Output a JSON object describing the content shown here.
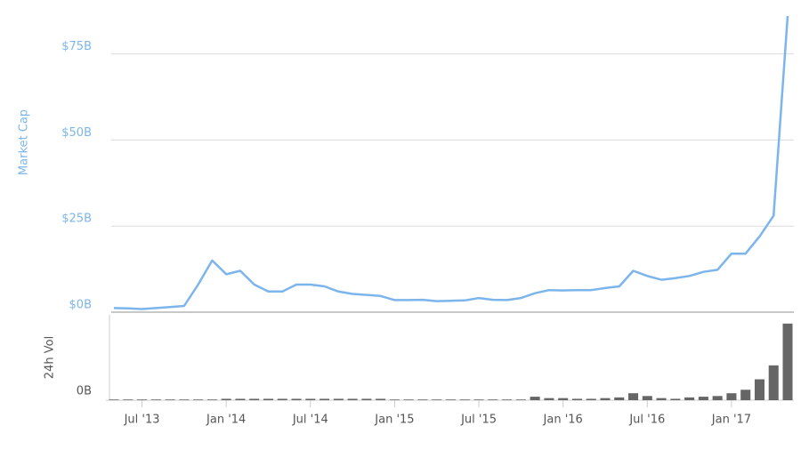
{
  "chart_data": [
    {
      "type": "line",
      "ylabel": "Market Cap",
      "x": [
        "2013-05",
        "2013-06",
        "2013-07",
        "2013-08",
        "2013-09",
        "2013-10",
        "2013-11",
        "2013-12",
        "2014-01",
        "2014-02",
        "2014-03",
        "2014-04",
        "2014-05",
        "2014-06",
        "2014-07",
        "2014-08",
        "2014-09",
        "2014-10",
        "2014-11",
        "2014-12",
        "2015-01",
        "2015-02",
        "2015-03",
        "2015-04",
        "2015-05",
        "2015-06",
        "2015-07",
        "2015-08",
        "2015-09",
        "2015-10",
        "2015-11",
        "2015-12",
        "2016-01",
        "2016-02",
        "2016-03",
        "2016-04",
        "2016-05",
        "2016-06",
        "2016-07",
        "2016-08",
        "2016-09",
        "2016-10",
        "2016-11",
        "2016-12",
        "2017-01",
        "2017-02",
        "2017-03",
        "2017-04",
        "2017-05"
      ],
      "series": [
        {
          "name": "Market Cap",
          "color": "#7cb5ec",
          "values": [
            1.2,
            1.1,
            0.9,
            1.2,
            1.5,
            1.8,
            8,
            15,
            11,
            12,
            8,
            6,
            6,
            8,
            8,
            7.5,
            6,
            5.3,
            5,
            4.7,
            3.5,
            3.5,
            3.6,
            3.2,
            3.3,
            3.4,
            4.1,
            3.6,
            3.5,
            4.1,
            5.5,
            6.4,
            6.3,
            6.4,
            6.4,
            7,
            7.5,
            12,
            10.5,
            9.4,
            9.9,
            10.5,
            11.7,
            12.3,
            17,
            17,
            22,
            28,
            86
          ]
        }
      ],
      "ylim": [
        0,
        86
      ],
      "yticks": [
        {
          "value": 0,
          "label": "$0B"
        },
        {
          "value": 25,
          "label": "$25B"
        },
        {
          "value": 50,
          "label": "$50B"
        },
        {
          "value": 75,
          "label": "$75B"
        }
      ],
      "xticks": [
        {
          "value": "2013-07",
          "label": "Jul '13"
        },
        {
          "value": "2014-01",
          "label": "Jan '14"
        },
        {
          "value": "2014-07",
          "label": "Jul '14"
        },
        {
          "value": "2015-01",
          "label": "Jan '15"
        },
        {
          "value": "2015-07",
          "label": "Jul '15"
        },
        {
          "value": "2016-01",
          "label": "Jan '16"
        },
        {
          "value": "2016-07",
          "label": "Jul '16"
        },
        {
          "value": "2017-01",
          "label": "Jan '17"
        }
      ],
      "grid": true
    },
    {
      "type": "bar",
      "ylabel": "24h Vol",
      "color": "#666666",
      "values": [
        0.01,
        0.01,
        0.01,
        0.01,
        0.01,
        0.01,
        0.01,
        0.01,
        0.02,
        0.02,
        0.02,
        0.02,
        0.02,
        0.02,
        0.02,
        0.02,
        0.02,
        0.02,
        0.02,
        0.02,
        0.01,
        0.01,
        0.01,
        0.01,
        0.01,
        0.01,
        0.01,
        0.01,
        0.01,
        0.01,
        0.05,
        0.03,
        0.03,
        0.02,
        0.02,
        0.03,
        0.04,
        0.1,
        0.06,
        0.03,
        0.02,
        0.04,
        0.05,
        0.06,
        0.1,
        0.15,
        0.3,
        0.5,
        1.1
      ],
      "ylim": [
        0,
        1.2
      ],
      "yticks": [
        {
          "value": 0,
          "label": "0B"
        }
      ]
    }
  ]
}
